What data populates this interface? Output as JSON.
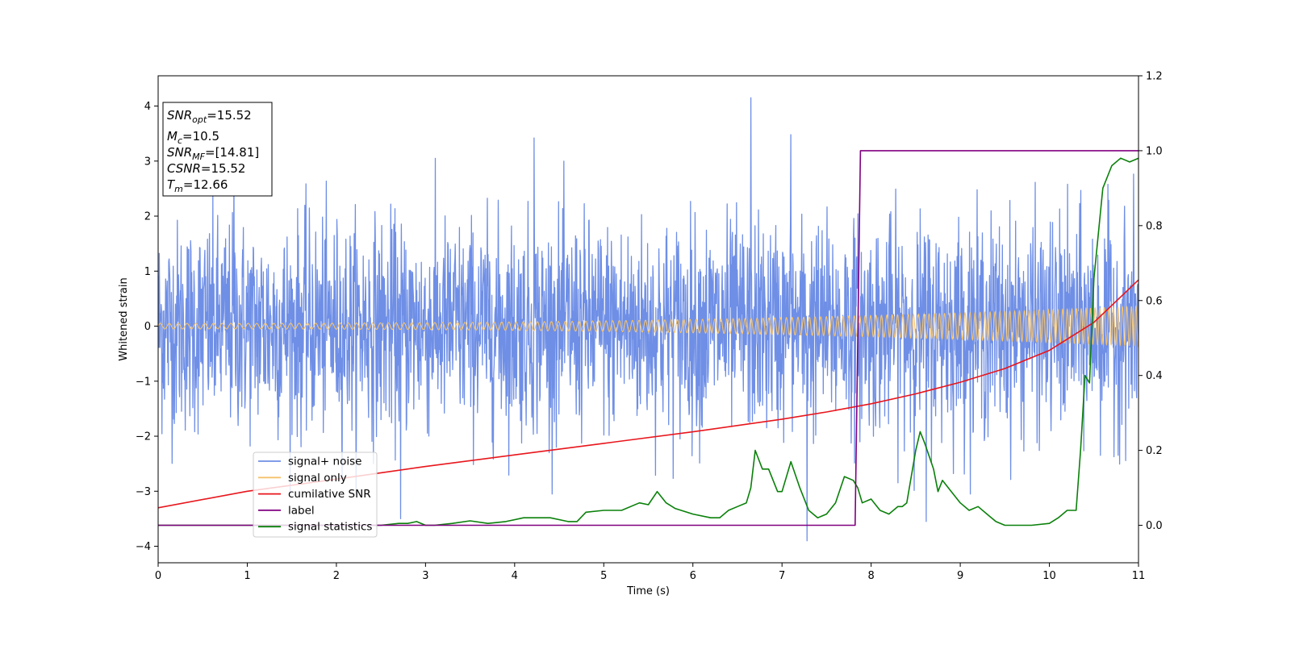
{
  "chart_data": {
    "type": "line",
    "title": "",
    "xlabel": "Time (s)",
    "ylabel_left": "Whitened strain",
    "ylabel_right": "",
    "xlim": [
      0,
      11
    ],
    "ylim_left": [
      -4.3,
      4.55
    ],
    "ylim_right": [
      -0.1,
      1.2
    ],
    "x_ticks": [
      "0",
      "1",
      "2",
      "3",
      "4",
      "5",
      "6",
      "7",
      "8",
      "9",
      "10",
      "11"
    ],
    "y_ticks_left": [
      "4",
      "3",
      "2",
      "1",
      "0",
      "−1",
      "−2",
      "−3",
      "−4"
    ],
    "y_ticks_right": [
      "0.0",
      "0.2",
      "0.4",
      "0.6",
      "0.8",
      "1.0",
      "1.2"
    ],
    "grid": false,
    "legend_placement": "lower-left",
    "series": [
      {
        "name": "signal+ noise",
        "axis": "left",
        "color": "#6f8fe6",
        "description_values": "noisy whitened strain, roughly between -2.5 and 2.5 with spikes",
        "spikes": [
          [
            6.65,
            4.15
          ],
          [
            7.28,
            -3.9
          ],
          [
            4.22,
            3.42
          ],
          [
            7.1,
            3.48
          ],
          [
            2.72,
            -3.5
          ],
          [
            8.62,
            -3.55
          ],
          [
            0.85,
            3.0
          ]
        ]
      },
      {
        "name": "signal only",
        "axis": "left",
        "color": "#f5c26b",
        "amplitude_start": 0.05,
        "amplitude_end": 0.36
      },
      {
        "name": "cumilative SNR",
        "axis": "left",
        "color": "#e8161c",
        "x": [
          0,
          1,
          2,
          3,
          4,
          5,
          6,
          7,
          7.5,
          8,
          8.5,
          9,
          9.5,
          10,
          10.5,
          11
        ],
        "y": [
          -3.3,
          -3.0,
          -2.78,
          -2.55,
          -2.34,
          -2.13,
          -1.92,
          -1.69,
          -1.56,
          -1.41,
          -1.23,
          -1.02,
          -0.77,
          -0.44,
          0.07,
          0.84
        ]
      },
      {
        "name": "label",
        "axis": "right",
        "color": "#800080",
        "x": [
          0,
          7.82,
          7.88,
          11
        ],
        "y": [
          0,
          0,
          1,
          1
        ]
      },
      {
        "name": "signal statistics",
        "axis": "right",
        "color": "#0a800a",
        "x": [
          0,
          0.5,
          1,
          1.5,
          2,
          2.5,
          2.7,
          2.8,
          2.9,
          3.0,
          3.1,
          3.3,
          3.5,
          3.7,
          3.9,
          4.1,
          4.2,
          4.4,
          4.6,
          4.7,
          4.8,
          5.0,
          5.2,
          5.4,
          5.5,
          5.6,
          5.7,
          5.8,
          6.0,
          6.2,
          6.3,
          6.4,
          6.5,
          6.6,
          6.65,
          6.7,
          6.78,
          6.85,
          6.95,
          7.0,
          7.1,
          7.2,
          7.3,
          7.4,
          7.5,
          7.6,
          7.7,
          7.8,
          7.85,
          7.9,
          8.0,
          8.1,
          8.2,
          8.3,
          8.35,
          8.4,
          8.5,
          8.55,
          8.6,
          8.7,
          8.75,
          8.8,
          8.9,
          9.0,
          9.1,
          9.2,
          9.3,
          9.4,
          9.5,
          9.6,
          9.8,
          10.0,
          10.1,
          10.2,
          10.3,
          10.35,
          10.4,
          10.45,
          10.5,
          10.6,
          10.7,
          10.8,
          10.9,
          11.0
        ],
        "y": [
          0.0,
          0.0,
          0.0,
          0.0,
          0.0,
          0.0,
          0.005,
          0.005,
          0.01,
          0.0,
          0.0,
          0.005,
          0.012,
          0.005,
          0.01,
          0.02,
          0.02,
          0.02,
          0.01,
          0.01,
          0.035,
          0.04,
          0.04,
          0.06,
          0.055,
          0.09,
          0.06,
          0.045,
          0.03,
          0.02,
          0.02,
          0.04,
          0.05,
          0.06,
          0.1,
          0.2,
          0.15,
          0.15,
          0.09,
          0.09,
          0.17,
          0.1,
          0.04,
          0.02,
          0.03,
          0.06,
          0.13,
          0.12,
          0.1,
          0.06,
          0.07,
          0.04,
          0.03,
          0.05,
          0.05,
          0.06,
          0.2,
          0.25,
          0.22,
          0.15,
          0.09,
          0.12,
          0.09,
          0.06,
          0.04,
          0.05,
          0.03,
          0.01,
          0.0,
          0.0,
          0.0,
          0.005,
          0.02,
          0.04,
          0.04,
          0.2,
          0.4,
          0.38,
          0.66,
          0.9,
          0.96,
          0.98,
          0.97,
          0.98
        ]
      }
    ],
    "annotation_box": {
      "lines": [
        {
          "base": "SNR",
          "sub": "opt",
          "value": "=15.52"
        },
        {
          "base": "M",
          "sub": "c",
          "value": "=10.5"
        },
        {
          "base": "SNR",
          "sub": "MF",
          "value": "=[14.81]"
        },
        {
          "base": "CSNR",
          "sub": "",
          "value": "=15.52"
        },
        {
          "base": "T",
          "sub": "m",
          "value": "=12.66"
        }
      ]
    }
  }
}
